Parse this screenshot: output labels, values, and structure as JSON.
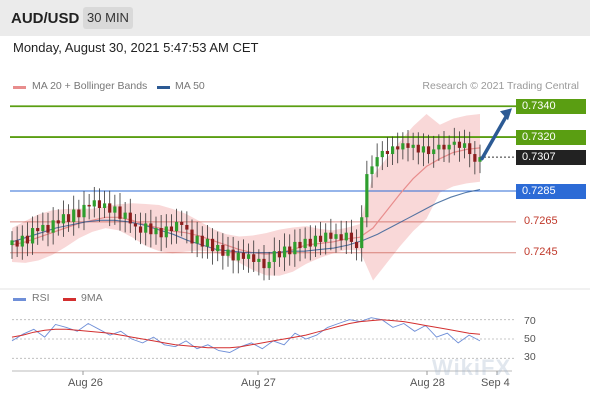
{
  "header": {
    "symbol": "AUD/USD",
    "timeframe": "30 MIN",
    "datetime": "Monday, August 30, 2021 5:47:53 AM CET"
  },
  "legend": {
    "bb_label": "MA 20 + Bollinger Bands",
    "ma50_label": "MA 50",
    "credit": "Research © 2021 Trading Central",
    "rsi_label": "RSI",
    "ma9_label": "9MA"
  },
  "colors": {
    "resistance": "#5a9e12",
    "support": "#c0392b",
    "pivot": "#2c6bd6",
    "current": "#222222",
    "ma20": "#e88d8d",
    "ma50": "#2c5a94",
    "bbands": "#f7c8c8",
    "rsi": "#6f8fd8",
    "rsi_ma": "#d32f2f",
    "bull": "#2e9e2e",
    "bear": "#8b1e1e"
  },
  "watermark": "WikiFX",
  "chart_data": [
    {
      "type": "candlestick",
      "title": "AUD/USD",
      "ylim": [
        0.7226,
        0.7346
      ],
      "x_ticks": [
        "Aug 26",
        "Aug 27",
        "Aug 28",
        "Sep 4"
      ],
      "levels": [
        {
          "label": "0.7340",
          "value": 0.734,
          "kind": "resistance"
        },
        {
          "label": "0.7320",
          "value": 0.732,
          "kind": "resistance"
        },
        {
          "label": "0.7307",
          "value": 0.7307,
          "kind": "current"
        },
        {
          "label": "0.7285",
          "value": 0.7285,
          "kind": "pivot"
        },
        {
          "label": "0.7265",
          "value": 0.7265,
          "kind": "support"
        },
        {
          "label": "0.7245",
          "value": 0.7245,
          "kind": "support"
        }
      ],
      "projection": {
        "from": 0.7306,
        "to": 0.734
      },
      "series": [
        {
          "name": "Price",
          "values": [
            0.7253,
            0.7249,
            0.7256,
            0.7251,
            0.7261,
            0.7259,
            0.7263,
            0.7258,
            0.7266,
            0.7264,
            0.727,
            0.7265,
            0.7273,
            0.7268,
            0.7276,
            0.7275,
            0.7279,
            0.7274,
            0.7277,
            0.7271,
            0.7275,
            0.7267,
            0.7271,
            0.7264,
            0.7262,
            0.7258,
            0.7264,
            0.7257,
            0.7261,
            0.7255,
            0.7262,
            0.7259,
            0.7265,
            0.7263,
            0.726,
            0.7251,
            0.7256,
            0.7249,
            0.7254,
            0.7246,
            0.725,
            0.7243,
            0.7247,
            0.724,
            0.7245,
            0.7241,
            0.7244,
            0.7239,
            0.7241,
            0.7235,
            0.7239,
            0.7246,
            0.7242,
            0.7249,
            0.7244,
            0.7252,
            0.7248,
            0.7254,
            0.7249,
            0.7256,
            0.7252,
            0.7258,
            0.7254,
            0.7257,
            0.7253,
            0.7258,
            0.7252,
            0.7248,
            0.7268,
            0.7296,
            0.7301,
            0.7307,
            0.7311,
            0.7309,
            0.7314,
            0.7312,
            0.7316,
            0.7313,
            0.7315,
            0.731,
            0.7314,
            0.7309,
            0.7312,
            0.7315,
            0.7312,
            0.7315,
            0.7317,
            0.7313,
            0.7316,
            0.7309,
            0.7304,
            0.7307
          ]
        },
        {
          "name": "MA 20",
          "values": [
            0.725,
            0.7252,
            0.7255,
            0.7258,
            0.7261,
            0.7264,
            0.7266,
            0.7268,
            0.7268,
            0.7266,
            0.7263,
            0.7261,
            0.7259,
            0.7258,
            0.7256,
            0.7253,
            0.725,
            0.7247,
            0.7245,
            0.7244,
            0.7245,
            0.7247,
            0.725,
            0.7251,
            0.7252,
            0.7254,
            0.7255,
            0.7261,
            0.7272,
            0.7283,
            0.7293,
            0.7301,
            0.7306,
            0.731,
            0.7312,
            0.7313
          ]
        },
        {
          "name": "MA 50",
          "values": [
            0.7252,
            0.7255,
            0.7258,
            0.7261,
            0.7263,
            0.7265,
            0.7266,
            0.7266,
            0.7265,
            0.7263,
            0.726,
            0.7257,
            0.7253,
            0.725,
            0.7247,
            0.7246,
            0.7245,
            0.7245,
            0.7245,
            0.7246,
            0.7246,
            0.7247,
            0.7248,
            0.725,
            0.7253,
            0.7257,
            0.7262,
            0.7267,
            0.7272,
            0.7277,
            0.7281,
            0.7284,
            0.7286
          ]
        }
      ]
    },
    {
      "type": "line",
      "title": "RSI",
      "ylim": [
        20,
        80
      ],
      "y_ticks": [
        30,
        50,
        70
      ],
      "series": [
        {
          "name": "RSI",
          "values": [
            48,
            55,
            60,
            52,
            65,
            62,
            58,
            66,
            60,
            54,
            58,
            50,
            46,
            52,
            44,
            42,
            48,
            40,
            44,
            38,
            36,
            42,
            46,
            40,
            48,
            44,
            56,
            50,
            54,
            62,
            66,
            70,
            68,
            72,
            70,
            62,
            66,
            58,
            64,
            52,
            56,
            46,
            54,
            48
          ]
        },
        {
          "name": "9MA",
          "values": [
            52,
            54,
            57,
            59,
            60,
            60,
            59,
            58,
            57,
            56,
            54,
            52,
            50,
            48,
            46,
            44,
            43,
            42,
            41,
            41,
            41,
            42,
            44,
            46,
            48,
            50,
            52,
            54,
            57,
            60,
            63,
            66,
            68,
            69,
            70,
            69,
            68,
            66,
            64,
            62,
            60,
            58,
            56,
            55
          ]
        }
      ]
    }
  ]
}
